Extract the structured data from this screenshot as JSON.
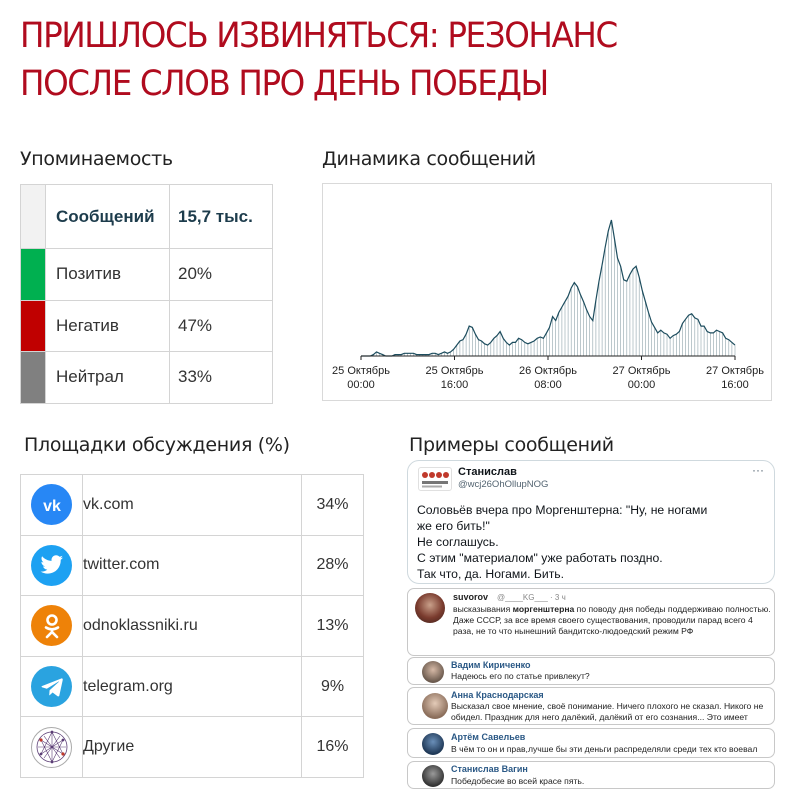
{
  "headline": {
    "line1": "ПРИШЛОСЬ ИЗВИНЯТЬСЯ: РЕЗОНАНС",
    "line2": "ПОСЛЕ СЛОВ ПРО ДЕНЬ ПОБЕДЫ"
  },
  "mentions": {
    "title": "Упоминаемость",
    "rows": [
      {
        "label": "Сообщений",
        "value": "15,7 тыс.",
        "color": "#f2f2f2"
      },
      {
        "label": "Позитив",
        "value": "20%",
        "color": "#00b050"
      },
      {
        "label": "Негатив",
        "value": "47%",
        "color": "#c00000"
      },
      {
        "label": "Нейтрал",
        "value": "33%",
        "color": "#808080"
      }
    ]
  },
  "chart_data": {
    "type": "area",
    "title": "Динамика сообщений",
    "x_tick_labels": [
      {
        "line1": "25 Октябрь",
        "line2": "00:00"
      },
      {
        "line1": "25 Октябрь",
        "line2": "16:00"
      },
      {
        "line1": "26 Октябрь",
        "line2": "08:00"
      },
      {
        "line1": "27 Октябрь",
        "line2": "00:00"
      },
      {
        "line1": "27 Октябрь",
        "line2": "16:00"
      }
    ],
    "x_range_hours": [
      0,
      64
    ],
    "y_axis_visible": false,
    "grid": false,
    "series_color": "#1d4d5e",
    "values_relative": [
      0,
      0,
      0,
      0,
      0.01,
      0.03,
      0.02,
      0.01,
      0,
      0,
      0,
      0.01,
      0.01,
      0.01,
      0.02,
      0.02,
      0.02,
      0.02,
      0.01,
      0.01,
      0.01,
      0.01,
      0.01,
      0.02,
      0.02,
      0.01,
      0.02,
      0.03,
      0.02,
      0.03,
      0.05,
      0.08,
      0.11,
      0.12,
      0.16,
      0.22,
      0.21,
      0.16,
      0.12,
      0.11,
      0.09,
      0.08,
      0.1,
      0.13,
      0.15,
      0.18,
      0.13,
      0.1,
      0.08,
      0.1,
      0.1,
      0.13,
      0.12,
      0.1,
      0.09,
      0.1,
      0.11,
      0.13,
      0.14,
      0.13,
      0.17,
      0.21,
      0.29,
      0.26,
      0.32,
      0.36,
      0.4,
      0.44,
      0.5,
      0.54,
      0.51,
      0.45,
      0.4,
      0.34,
      0.29,
      0.26,
      0.41,
      0.55,
      0.67,
      0.8,
      0.92,
      1.0,
      0.86,
      0.72,
      0.66,
      0.56,
      0.55,
      0.6,
      0.64,
      0.66,
      0.58,
      0.48,
      0.4,
      0.32,
      0.25,
      0.21,
      0.17,
      0.19,
      0.17,
      0.16,
      0.13,
      0.15,
      0.16,
      0.18,
      0.24,
      0.27,
      0.3,
      0.31,
      0.28,
      0.27,
      0.22,
      0.22,
      0.18,
      0.17,
      0.17,
      0.19,
      0.18,
      0.17,
      0.13,
      0.12,
      0.1,
      0.08
    ]
  },
  "platforms": {
    "title": "Площадки обсуждения (%)",
    "rows": [
      {
        "name": "vk.com",
        "value": "34%",
        "icon": "vk-icon",
        "color": "#2787f5"
      },
      {
        "name": "twitter.com",
        "value": "28%",
        "icon": "twitter-icon",
        "color": "#1da1f2"
      },
      {
        "name": "odnoklassniki.ru",
        "value": "13%",
        "icon": "odnoklassniki-icon",
        "color": "#ee8208"
      },
      {
        "name": "telegram.org",
        "value": "9%",
        "icon": "telegram-icon",
        "color": "#2aa3e0"
      },
      {
        "name": "Другие",
        "value": "16%",
        "icon": "network-icon",
        "color": "#5b3d75"
      }
    ]
  },
  "examples": {
    "title": "Примеры сообщений",
    "tweet": {
      "author": "Станислав",
      "handle": "@wcj26OhOllupNOG",
      "more": "···",
      "lines": [
        "Соловьёв вчера про Моргенштерна: \"Ну, не ногами",
        "же его бить!\"",
        "Не соглашусь.",
        "С этим \"материалом\" уже работать поздно.",
        "Так что, да. Ногами. Бить."
      ]
    },
    "vk_post": {
      "author": "suvorov",
      "meta": "@____KG___ · 3 ч",
      "text_before": "высказывания ",
      "text_bold": "моргенштерна",
      "text_after": " по поводу дня победы поддерживаю полностью. Даже СССР, за все время своего существования, проводили парад всего 4 раза, не то что нынешний бандитско-людоедский режим РФ"
    },
    "comments": [
      {
        "name": "Вадим Кириченко",
        "text": "Надеюсь его по статье привлекут?"
      },
      {
        "name": "Анна Краснодарская",
        "text": "Высказал свое мнение, своё понимание. Ничего плохого не сказал. Никого не обидел. Праздник для него далёкий, далёкий от его сознания... Это имеет место быть."
      },
      {
        "name": "Артём Савельев",
        "text": "В чём то он и прав,лучше бы эти деньги распределяли среди тех кто воевал"
      },
      {
        "name": "Станислав Вагин",
        "text": "Победобесие во всей красе пять."
      }
    ]
  }
}
